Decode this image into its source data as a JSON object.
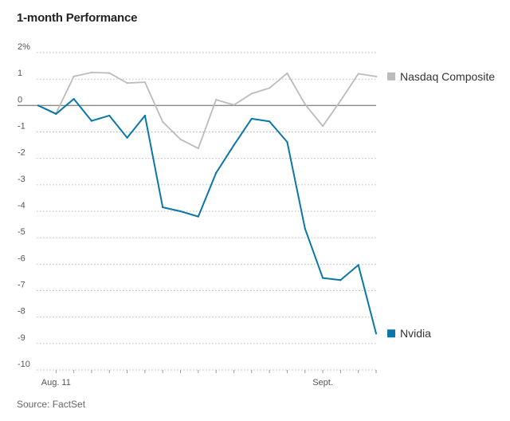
{
  "page": {
    "title": "1-month Performance",
    "source": "Source: FactSet"
  },
  "chart_data": {
    "type": "line",
    "title": "1-month Performance",
    "xlabel": "",
    "ylabel": "%",
    "ylim": [
      -10,
      2
    ],
    "y_ticks": [
      {
        "value": 2,
        "label": "2%"
      },
      {
        "value": 1,
        "label": "1"
      },
      {
        "value": 0,
        "label": "0"
      },
      {
        "value": -1,
        "label": "-1"
      },
      {
        "value": -2,
        "label": "-2"
      },
      {
        "value": -3,
        "label": "-3"
      },
      {
        "value": -4,
        "label": "-4"
      },
      {
        "value": -5,
        "label": "-5"
      },
      {
        "value": -6,
        "label": "-6"
      },
      {
        "value": -7,
        "label": "-7"
      },
      {
        "value": -8,
        "label": "-8"
      },
      {
        "value": -9,
        "label": "-9"
      },
      {
        "value": -10,
        "label": "-10"
      }
    ],
    "grid": true,
    "num_points": 20,
    "x_tick_indices": [
      1,
      2,
      3,
      4,
      5,
      6,
      7,
      8,
      9,
      10,
      11,
      12,
      13,
      14,
      15,
      16,
      17,
      18,
      19
    ],
    "x_labels": [
      {
        "index": 1,
        "label": "Aug. 11"
      },
      {
        "index": 16,
        "label": "Sept."
      }
    ],
    "series": [
      {
        "name": "Nasdaq Composite",
        "color": "#bbbbbb",
        "values": [
          0.0,
          -0.3,
          1.1,
          1.25,
          1.23,
          0.85,
          0.88,
          -0.62,
          -1.28,
          -1.62,
          0.22,
          0.02,
          0.45,
          0.66,
          1.22,
          0.05,
          -0.78,
          0.18,
          1.2,
          1.1
        ]
      },
      {
        "name": "Nvidia",
        "color": "#0a77a8",
        "values": [
          0.0,
          -0.32,
          0.25,
          -0.58,
          -0.38,
          -1.22,
          -0.38,
          -3.85,
          -4.0,
          -4.2,
          -2.55,
          -1.5,
          -0.5,
          -0.6,
          -1.38,
          -4.65,
          -6.52,
          -6.6,
          -6.03,
          -8.62
        ]
      }
    ],
    "legend": [
      "Nasdaq Composite",
      "Nvidia"
    ],
    "legend_placement": "right"
  }
}
